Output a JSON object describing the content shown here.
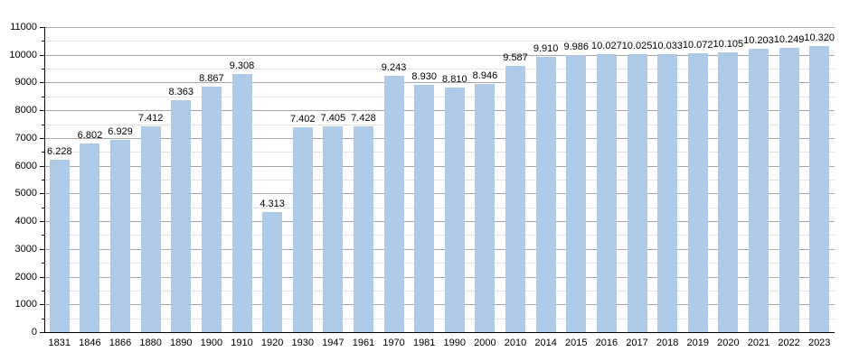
{
  "chart_data": {
    "type": "bar",
    "title": "",
    "xlabel": "",
    "ylabel": "",
    "categories": [
      "1831",
      "1846",
      "1866",
      "1880",
      "1890",
      "1900",
      "1910",
      "1920",
      "1930",
      "1947",
      "1961",
      "1970",
      "1981",
      "1990",
      "2000",
      "2010",
      "2014",
      "2015",
      "2016",
      "2017",
      "2018",
      "2019",
      "2020",
      "2021",
      "2022",
      "2023"
    ],
    "values": [
      6228,
      6802,
      6929,
      7412,
      8363,
      8867,
      9308,
      4313,
      7402,
      7405,
      7428,
      9243,
      8930,
      8810,
      8946,
      9587,
      9910,
      9986,
      10027,
      10025,
      10033,
      10072,
      10105,
      10203,
      10249,
      10320
    ],
    "value_labels": [
      "6.228",
      "6.802",
      "6.929",
      "7.412",
      "8.363",
      "8.867",
      "9.308",
      "4.313",
      "7.402",
      "7.405",
      "7.428",
      "9.243",
      "8.930",
      "8.810",
      "8.946",
      "9.587",
      "9.910",
      "9.986",
      "10.027",
      "10.025",
      "10.033",
      "10.072",
      "10.105",
      "10.203",
      "10.249",
      "10.320"
    ],
    "ylim": [
      0,
      11000
    ],
    "y_major_step": 1000,
    "y_minor_step": 500,
    "y_tick_labels": [
      "0",
      "1000",
      "2000",
      "3000",
      "4000",
      "5000",
      "6000",
      "7000",
      "8000",
      "9000",
      "10000",
      "11000"
    ],
    "grid": true,
    "legend": "none",
    "colors": {
      "bar_fill": "#aecae6",
      "major_grid": "#a6a6a6",
      "minor_grid": "#e3e3e3",
      "axis": "#000000",
      "text": "#000000",
      "background": "#ffffff"
    }
  }
}
